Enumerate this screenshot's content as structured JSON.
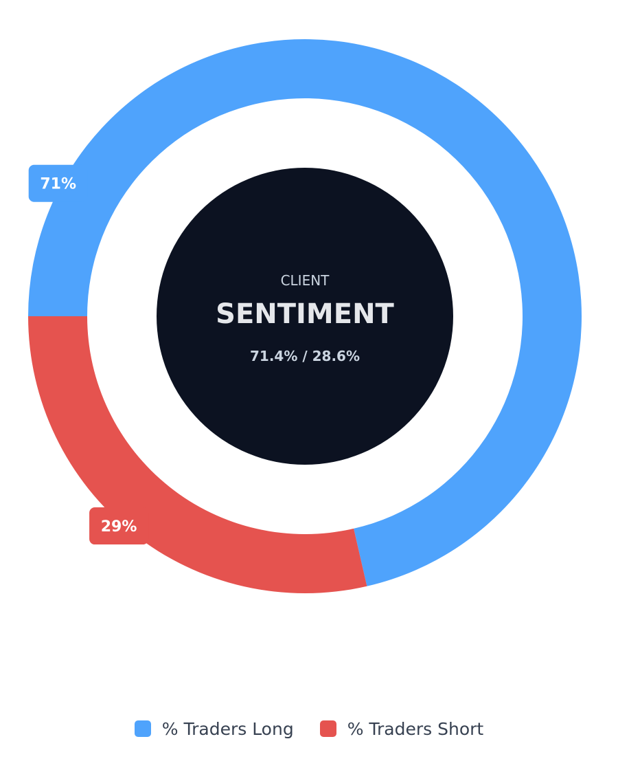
{
  "chart_data": {
    "type": "pie",
    "variant": "donut",
    "categories": [
      "% Traders Long",
      "% Traders Short"
    ],
    "values": [
      71.4,
      28.6
    ],
    "colors": [
      "#4fa3fc",
      "#e5534f"
    ],
    "data_labels": [
      "71%",
      "29%"
    ],
    "center": {
      "caption": "CLIENT",
      "title": "SENTIMENT",
      "values_text": "71.4% / 28.6%",
      "background": "#0c1221"
    },
    "legend_position": "bottom"
  }
}
